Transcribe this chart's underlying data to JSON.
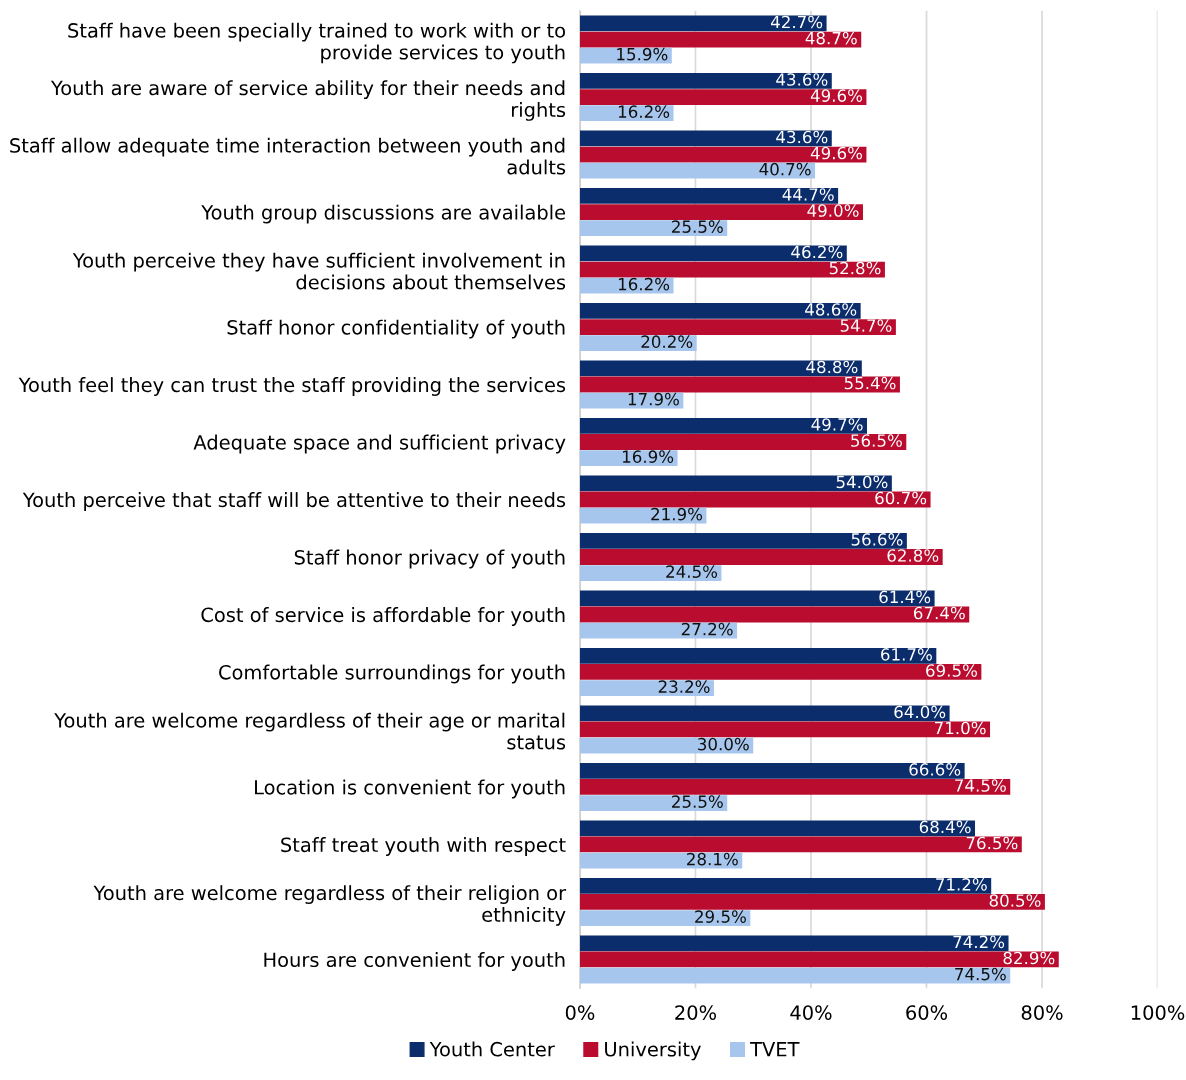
{
  "chart_data": {
    "type": "bar",
    "orientation": "horizontal",
    "categories": [
      "Staff have been specially trained to work with or to\nprovide services to youth",
      "Youth are aware of service ability for their needs and\nrights",
      "Staff allow adequate time interaction between youth and\nadults",
      "Youth group discussions are available",
      "Youth perceive they have sufficient involvement in\ndecisions about themselves",
      "Staff honor confidentiality of youth",
      "Youth feel they can trust the staff providing the services",
      "Adequate space and sufficient privacy",
      "Youth perceive that staff will be attentive to their needs",
      "Staff honor privacy of youth",
      "Cost of service is affordable for youth",
      "Comfortable surroundings for youth",
      "Youth are welcome regardless of their age or marital\nstatus",
      "Location is convenient for youth",
      "Staff treat youth with respect",
      "Youth are welcome regardless of their religion or\nethnicity",
      "Hours are convenient for youth"
    ],
    "series": [
      {
        "name": "Youth Center",
        "color": "#0b2d6b",
        "values": [
          42.7,
          43.6,
          43.6,
          44.7,
          46.2,
          48.6,
          48.8,
          49.7,
          54.0,
          56.6,
          61.4,
          61.7,
          64.0,
          66.6,
          68.4,
          71.2,
          74.2
        ],
        "value_labels": [
          "42.7%",
          "43.6%",
          "43.6%",
          "44.7%",
          "46.2%",
          "48.6%",
          "48.8%",
          "49.7%",
          "54.0%",
          "56.6%",
          "61.4%",
          "61.7%",
          "64.0%",
          "66.6%",
          "68.4%",
          "71.2%",
          "74.2%"
        ]
      },
      {
        "name": "University",
        "color": "#ba0c2f",
        "values": [
          48.7,
          49.6,
          49.6,
          49.0,
          52.8,
          54.7,
          55.4,
          56.5,
          60.7,
          62.8,
          67.4,
          69.5,
          71.0,
          74.5,
          76.5,
          80.5,
          82.9
        ],
        "value_labels": [
          "48.7%",
          "49.6%",
          "49.6%",
          "49.0%",
          "52.8%",
          "54.7%",
          "55.4%",
          "56.5%",
          "60.7%",
          "62.8%",
          "67.4%",
          "69.5%",
          "71.0%",
          "74.5%",
          "76.5%",
          "80.5%",
          "82.9%"
        ]
      },
      {
        "name": "TVET",
        "color": "#a7c6ed",
        "values": [
          15.9,
          16.2,
          40.7,
          25.5,
          16.2,
          20.2,
          17.9,
          16.9,
          21.9,
          24.5,
          27.2,
          23.2,
          30.0,
          25.5,
          28.1,
          29.5,
          74.5
        ],
        "value_labels": [
          "15.9%",
          "16.2%",
          "40.7%",
          "25.5%",
          "16.2%",
          "20.2%",
          "17.9%",
          "16.9%",
          "21.9%",
          "24.5%",
          "27.2%",
          "23.2%",
          "30.0%",
          "25.5%",
          "28.1%",
          "29.5%",
          "74.5%"
        ]
      }
    ],
    "xlim": [
      0,
      100
    ],
    "xticks": [
      {
        "value": 0,
        "label": "0%"
      },
      {
        "value": 20,
        "label": "20%"
      },
      {
        "value": 40,
        "label": "40%"
      },
      {
        "value": 60,
        "label": "60%"
      },
      {
        "value": 80,
        "label": "80%"
      },
      {
        "value": 100,
        "label": "100%"
      }
    ],
    "grid": "x",
    "legend": "bottom"
  }
}
